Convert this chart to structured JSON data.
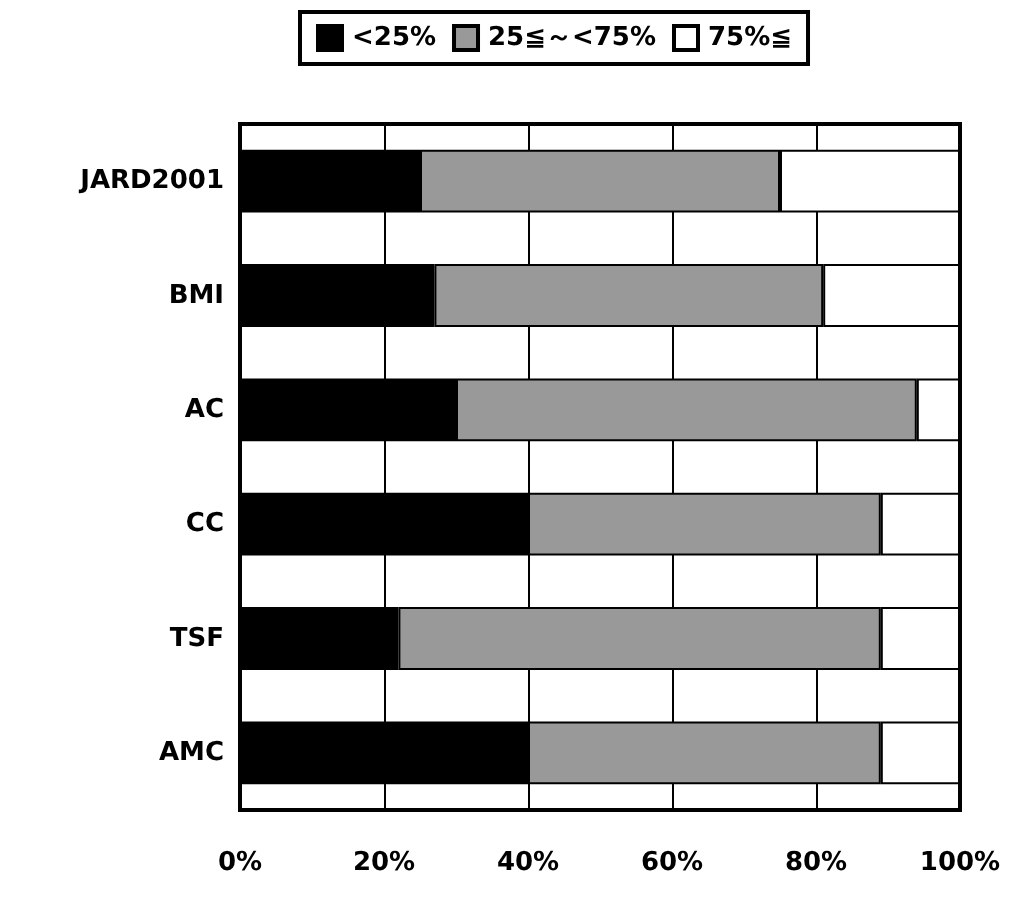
{
  "chart_data": {
    "type": "bar",
    "orientation": "horizontal",
    "stacked": true,
    "categories": [
      "JARD2001",
      "BMI",
      "AC",
      "CC",
      "TSF",
      "AMC"
    ],
    "series": [
      {
        "name": "<25%",
        "color": "#000000",
        "values": [
          25,
          27,
          30,
          40,
          22,
          40
        ]
      },
      {
        "name": "25≦～<75%",
        "color": "#999999",
        "values": [
          50,
          54,
          64,
          49,
          67,
          49
        ]
      },
      {
        "name": "75%≦",
        "color": "#ffffff",
        "values": [
          25,
          19,
          6,
          11,
          11,
          11
        ]
      }
    ],
    "xlim": [
      0,
      100
    ],
    "xticks": [
      {
        "value": 0,
        "label": "0%"
      },
      {
        "value": 20,
        "label": "20%"
      },
      {
        "value": 40,
        "label": "40%"
      },
      {
        "value": 60,
        "label": "60%"
      },
      {
        "value": 80,
        "label": "80%"
      },
      {
        "value": 100,
        "label": "100%"
      }
    ],
    "grid": "x",
    "legend": "top"
  }
}
